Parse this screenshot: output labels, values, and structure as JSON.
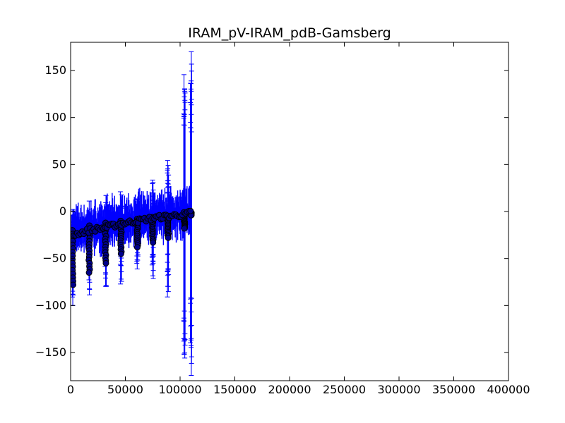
{
  "chart_data": {
    "type": "scatter",
    "title": "IRAM_pV-IRAM_pdB-Gamsberg",
    "xlabel": "",
    "ylabel": "",
    "xlim": [
      0,
      400000
    ],
    "ylim": [
      -180,
      180
    ],
    "x_ticks": [
      0,
      50000,
      100000,
      150000,
      200000,
      250000,
      300000,
      350000,
      400000
    ],
    "x_tick_labels": [
      "0",
      "50000",
      "100000",
      "150000",
      "200000",
      "250000",
      "300000",
      "350000",
      "400000"
    ],
    "y_ticks": [
      -150,
      -100,
      -50,
      0,
      50,
      100,
      150
    ],
    "y_tick_labels": [
      "−150",
      "−100",
      "−50",
      "0",
      "50",
      "100",
      "150"
    ],
    "grid": false,
    "colors": {
      "errorbar": "#0000ff",
      "marker_face": "#00008b",
      "marker_edge": "#000000"
    },
    "clusters": [
      {
        "x": 2000,
        "y_top": -20,
        "y_bottom": -78,
        "err": 32
      },
      {
        "x": 17000,
        "y_top": -15,
        "y_bottom": -65,
        "err": 28
      },
      {
        "x": 32000,
        "y_top": -12,
        "y_bottom": -55,
        "err": 30
      },
      {
        "x": 46000,
        "y_top": -10,
        "y_bottom": -45,
        "err": 34
      },
      {
        "x": 61000,
        "y_top": -8,
        "y_bottom": -38,
        "err": 28
      },
      {
        "x": 75000,
        "y_top": -6,
        "y_bottom": -33,
        "err": 40
      },
      {
        "x": 89000,
        "y_top": -5,
        "y_bottom": -28,
        "err": 68
      },
      {
        "x": 104000,
        "y_top": -3,
        "y_bottom": -18,
        "err": 155
      },
      {
        "x": 110000,
        "y_top": -1,
        "y_bottom": -4,
        "err": 175
      }
    ],
    "trend": [
      {
        "x": 2000,
        "y": -25
      },
      {
        "x": 17000,
        "y": -20
      },
      {
        "x": 32000,
        "y": -17
      },
      {
        "x": 46000,
        "y": -13
      },
      {
        "x": 61000,
        "y": -10
      },
      {
        "x": 75000,
        "y": -7
      },
      {
        "x": 89000,
        "y": -5
      },
      {
        "x": 104000,
        "y": -3
      },
      {
        "x": 110000,
        "y": -1
      }
    ],
    "band": {
      "x_start": 0,
      "x_end": 110000,
      "y_low": -28,
      "y_high": 20
    }
  }
}
